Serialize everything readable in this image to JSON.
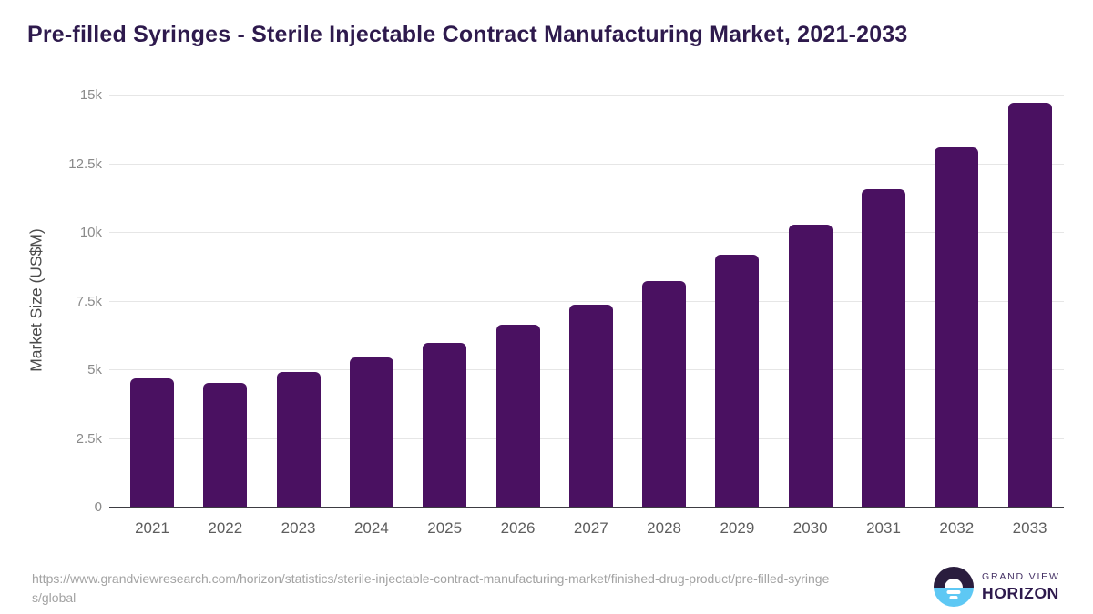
{
  "chart_data": {
    "type": "bar",
    "title": "Pre-filled Syringes - Sterile Injectable Contract Manufacturing Market, 2021-2033",
    "xlabel": "",
    "ylabel": "Market Size (US$M)",
    "categories": [
      "2021",
      "2022",
      "2023",
      "2024",
      "2025",
      "2026",
      "2027",
      "2028",
      "2029",
      "2030",
      "2031",
      "2032",
      "2033"
    ],
    "values": [
      4700,
      4550,
      4950,
      5450,
      6000,
      6650,
      7400,
      8250,
      9200,
      10300,
      11600,
      13100,
      14750
    ],
    "ylim": [
      0,
      15000
    ],
    "yticks": [
      0,
      2500,
      5000,
      7500,
      10000,
      12500,
      15000
    ],
    "ytick_labels": [
      "0",
      "2.5k",
      "5k",
      "7.5k",
      "10k",
      "12.5k",
      "15k"
    ],
    "grid": true,
    "legend": "none",
    "bar_color": "#4a1161"
  },
  "colors": {
    "bar": "#4a1161",
    "title_text": "#2e1a4d",
    "gridline": "#e6e6e6",
    "axis_line": "#3d3c42",
    "y_tick_text": "#8a8a8a",
    "x_tick_text": "#5d5d5d",
    "url_text": "#a3a3a3",
    "logo_dark": "#2a1d3e",
    "logo_blue": "#5ec8f4"
  },
  "footer": {
    "source_url": "https://www.grandviewresearch.com/horizon/statistics/sterile-injectable-contract-manufacturing-market/finished-drug-product/pre-filled-syringes/global",
    "logo": {
      "line1": "GRAND VIEW",
      "line2": "HORIZON"
    }
  }
}
